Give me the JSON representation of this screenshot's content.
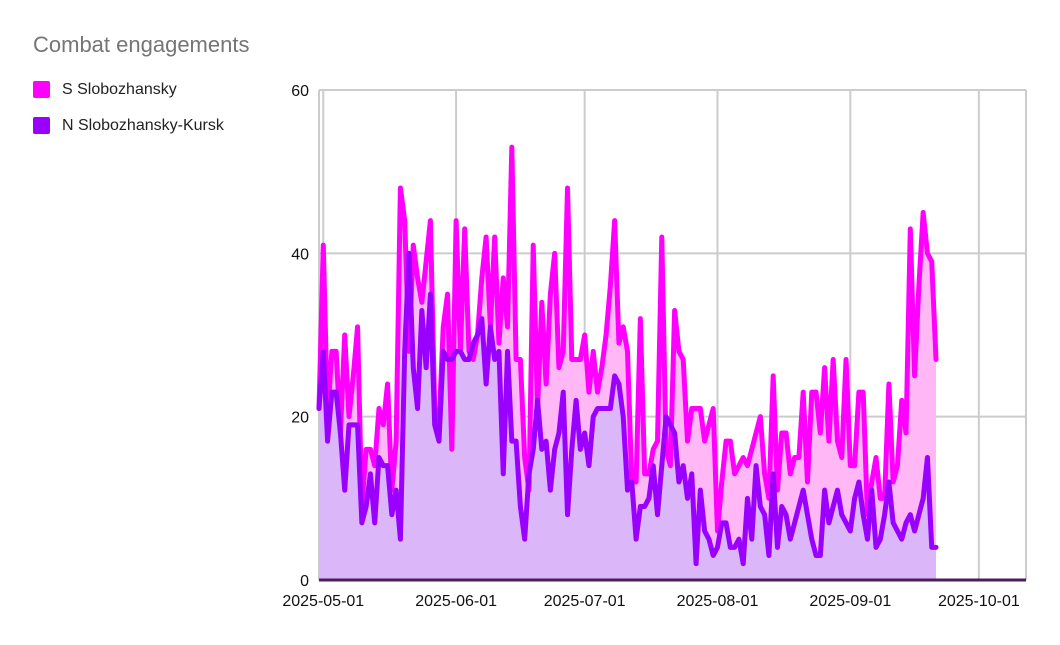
{
  "chart_data": {
    "type": "area",
    "title": "Combat engagements",
    "xlabel": "",
    "ylabel": "",
    "x_range": [
      "2025-04-30",
      "2025-10-12"
    ],
    "ylim": [
      0,
      60
    ],
    "y_ticks": [
      "0",
      "20",
      "40",
      "60"
    ],
    "x_ticks": [
      {
        "date": "2025-05-01",
        "label": "2025-05-01"
      },
      {
        "date": "2025-06-01",
        "label": "2025-06-01"
      },
      {
        "date": "2025-07-01",
        "label": "2025-07-01"
      },
      {
        "date": "2025-08-01",
        "label": "2025-08-01"
      },
      {
        "date": "2025-09-01",
        "label": "2025-09-01"
      },
      {
        "date": "2025-10-01",
        "label": "2025-10-01"
      }
    ],
    "grid": true,
    "legend_position": "top-left",
    "start_date": "2025-04-30",
    "series": [
      {
        "name": "S Slobozhansky",
        "color": "#ff00ff",
        "fill": "#ffb8f5",
        "values": [
          21,
          41,
          20,
          28,
          28,
          18,
          30,
          20,
          25,
          31,
          9,
          16,
          16,
          14,
          21,
          19,
          24,
          11,
          17,
          48,
          44,
          28,
          41,
          37,
          34,
          39,
          44,
          21,
          19,
          31,
          35,
          16,
          44,
          28,
          43,
          28,
          27,
          30,
          37,
          42,
          31,
          42,
          29,
          37,
          31,
          53,
          27,
          27,
          15,
          11,
          41,
          21,
          34,
          24,
          35,
          40,
          26,
          28,
          48,
          27,
          27,
          27,
          30,
          23,
          28,
          23,
          26,
          30,
          36,
          44,
          29,
          31,
          28,
          12,
          12,
          32,
          13,
          13,
          16,
          17,
          42,
          16,
          14,
          33,
          28,
          27,
          17,
          21,
          21,
          21,
          17,
          19,
          21,
          6,
          12,
          17,
          17,
          13,
          14,
          15,
          14,
          16,
          18,
          20,
          13,
          10,
          25,
          11,
          18,
          18,
          13,
          15,
          15,
          23,
          12,
          23,
          23,
          18,
          26,
          17,
          27,
          17,
          15,
          27,
          14,
          14,
          23,
          23,
          8,
          12,
          15,
          10,
          10,
          24,
          12,
          14,
          22,
          18,
          43,
          25,
          36,
          45,
          40,
          39,
          27
        ]
      },
      {
        "name": "N Slobozhansky-Kursk",
        "color": "#9900ff",
        "fill": "#dbb7f9",
        "values": [
          21,
          28,
          17,
          23,
          23,
          18,
          11,
          19,
          19,
          19,
          7,
          9,
          13,
          7,
          15,
          14,
          14,
          8,
          11,
          5,
          28,
          40,
          26,
          21,
          33,
          26,
          35,
          19,
          17,
          28,
          27,
          27,
          28,
          28,
          27,
          27,
          29,
          30,
          32,
          24,
          31,
          27,
          28,
          13,
          28,
          17,
          17,
          9,
          5,
          13,
          16,
          22,
          16,
          17,
          11,
          16,
          18,
          23,
          8,
          16,
          22,
          16,
          18,
          14,
          20,
          21,
          21,
          21,
          21,
          25,
          24,
          20,
          11,
          12,
          5,
          9,
          9,
          10,
          14,
          8,
          14,
          20,
          19,
          18,
          12,
          14,
          10,
          13,
          2,
          11,
          6,
          5,
          3,
          4,
          7,
          7,
          4,
          4,
          5,
          2,
          10,
          5,
          14,
          9,
          8,
          3,
          13,
          4,
          9,
          8,
          5,
          7,
          9,
          11,
          8,
          5,
          3,
          3,
          11,
          7,
          9,
          11,
          8,
          7,
          6,
          10,
          12,
          8,
          5,
          11,
          4,
          5,
          8,
          12,
          7,
          6,
          5,
          7,
          8,
          6,
          8,
          10,
          15,
          4,
          4
        ]
      }
    ]
  }
}
